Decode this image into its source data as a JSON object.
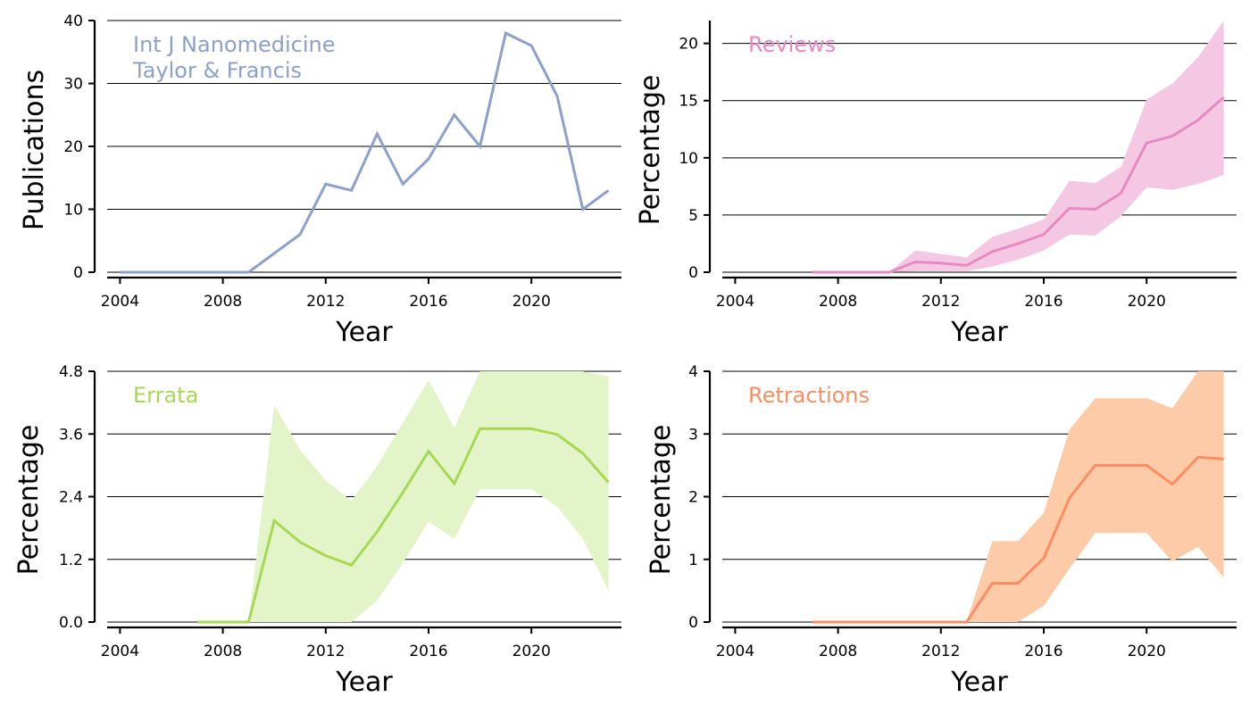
{
  "chart_data": [
    {
      "type": "line",
      "xlabel": "Year",
      "ylabel": "Publications",
      "xlim": [
        2003.5,
        2023.5
      ],
      "ylim": [
        0,
        40
      ],
      "xticks": [
        2004,
        2008,
        2012,
        2016,
        2020
      ],
      "yticks": [
        0,
        10,
        20,
        30,
        40
      ],
      "ytick_labels": [
        "0",
        "10",
        "20",
        "30",
        "40"
      ],
      "grid": "horizontal",
      "legend": "top-left",
      "annotation": [
        "Int J Nanomedicine",
        "Taylor & Francis"
      ],
      "color": "#8DA0CB",
      "series": [
        {
          "x": [
            2004,
            2005,
            2006,
            2007,
            2008,
            2009,
            2010,
            2011,
            2012,
            2013,
            2014,
            2015,
            2016,
            2017,
            2018,
            2019,
            2020,
            2021,
            2022,
            2023
          ],
          "values": [
            0,
            0,
            0,
            0,
            0,
            0,
            3,
            6,
            14,
            13,
            22,
            14,
            18,
            25,
            20,
            38,
            36,
            28,
            10,
            13
          ]
        }
      ]
    },
    {
      "type": "area",
      "xlabel": "Year",
      "ylabel": "Percentage",
      "xlim": [
        2003.5,
        2023.5
      ],
      "ylim": [
        0,
        22
      ],
      "xticks": [
        2004,
        2008,
        2012,
        2016,
        2020
      ],
      "yticks": [
        0,
        5,
        10,
        15,
        20
      ],
      "ytick_labels": [
        "0",
        "5",
        "10",
        "15",
        "20"
      ],
      "grid": "horizontal",
      "legend": "top-left",
      "annotation": [
        "Reviews"
      ],
      "color": "#E78AC3",
      "band_color": "#F4C8E3",
      "series": [
        {
          "x": [
            2007,
            2008,
            2009,
            2010,
            2011,
            2012,
            2013,
            2014,
            2015,
            2016,
            2017,
            2018,
            2019,
            2020,
            2021,
            2022,
            2023
          ],
          "values": [
            0,
            0,
            0,
            0,
            0.9,
            0.8,
            0.6,
            1.8,
            2.5,
            3.3,
            5.6,
            5.5,
            6.9,
            11.3,
            11.9,
            13.3,
            15.3
          ],
          "lower": [
            0,
            0,
            0,
            0,
            0.1,
            0.1,
            0.1,
            0.5,
            1.1,
            1.9,
            3.3,
            3.2,
            4.9,
            7.4,
            7.2,
            7.7,
            8.5
          ],
          "upper": [
            0,
            0,
            0,
            0,
            1.9,
            1.6,
            1.3,
            3.1,
            3.8,
            4.6,
            8.0,
            7.8,
            9.2,
            15.1,
            16.5,
            18.8,
            22.0
          ]
        }
      ]
    },
    {
      "type": "area",
      "xlabel": "Year",
      "ylabel": "Percentage",
      "xlim": [
        2003.5,
        2023.5
      ],
      "ylim": [
        0,
        4.8
      ],
      "xticks": [
        2004,
        2008,
        2012,
        2016,
        2020
      ],
      "yticks": [
        0,
        1.2,
        2.4,
        3.6,
        4.8
      ],
      "ytick_labels": [
        "0.0",
        "1.2",
        "2.4",
        "3.6",
        "4.8"
      ],
      "grid": "horizontal",
      "legend": "top-left",
      "annotation": [
        "Errata"
      ],
      "color": "#A6D854",
      "band_color": "#E3F4C9",
      "series": [
        {
          "x": [
            2007,
            2008,
            2009,
            2010,
            2011,
            2012,
            2013,
            2014,
            2015,
            2016,
            2017,
            2018,
            2019,
            2020,
            2021,
            2022,
            2023
          ],
          "values": [
            0,
            0,
            0,
            1.94,
            1.53,
            1.27,
            1.09,
            1.73,
            2.48,
            3.27,
            2.65,
            3.7,
            3.7,
            3.7,
            3.59,
            3.23,
            2.67
          ],
          "lower": [
            0,
            0,
            0,
            0,
            0,
            0,
            0,
            0.41,
            1.13,
            1.92,
            1.59,
            2.54,
            2.54,
            2.54,
            2.21,
            1.59,
            0.6
          ],
          "upper": [
            0,
            0,
            0,
            4.16,
            3.3,
            2.71,
            2.32,
            2.99,
            3.81,
            4.63,
            3.72,
            4.8,
            4.8,
            4.8,
            4.8,
            4.8,
            4.7
          ]
        }
      ]
    },
    {
      "type": "area",
      "xlabel": "Year",
      "ylabel": "Percentage",
      "xlim": [
        2003.5,
        2023.5
      ],
      "ylim": [
        0,
        4
      ],
      "xticks": [
        2004,
        2008,
        2012,
        2016,
        2020
      ],
      "yticks": [
        0,
        1,
        2,
        3,
        4
      ],
      "ytick_labels": [
        "0",
        "1",
        "2",
        "3",
        "4"
      ],
      "grid": "horizontal",
      "legend": "top-left",
      "annotation": [
        "Retractions"
      ],
      "color": "#FC8D62",
      "band_color": "#FDCBA8",
      "series": [
        {
          "x": [
            2007,
            2008,
            2009,
            2010,
            2011,
            2012,
            2013,
            2014,
            2015,
            2016,
            2017,
            2018,
            2019,
            2020,
            2021,
            2022,
            2023
          ],
          "values": [
            0,
            0,
            0,
            0,
            0,
            0,
            0,
            0.62,
            0.62,
            1.02,
            1.98,
            2.5,
            2.5,
            2.5,
            2.2,
            2.63,
            2.6
          ],
          "lower": [
            0,
            0,
            0,
            0,
            0,
            0,
            0,
            0,
            0,
            0.26,
            0.85,
            1.42,
            1.42,
            1.42,
            0.97,
            1.2,
            0.71
          ],
          "upper": [
            0,
            0,
            0,
            0,
            0,
            0,
            0,
            1.29,
            1.29,
            1.74,
            3.07,
            3.57,
            3.57,
            3.57,
            3.41,
            4.0,
            4.0
          ]
        }
      ]
    }
  ]
}
